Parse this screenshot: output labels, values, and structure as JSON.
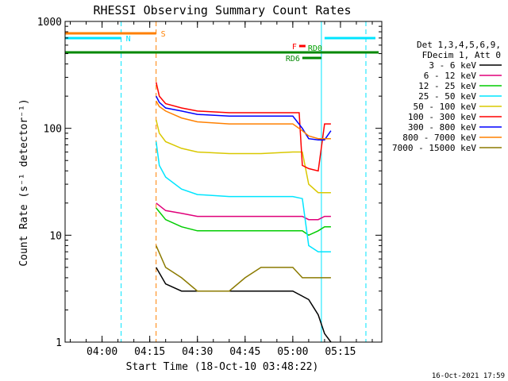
{
  "chart_data": {
    "type": "line",
    "title": "RHESSI Observing Summary Count Rates",
    "xlabel": "Start Time (18-Oct-10 03:48:22)",
    "ylabel": "Count Rate (s⁻¹ detector⁻¹)",
    "yscale": "log",
    "ylim": [
      1,
      1000
    ],
    "xlim": [
      "03:48:22",
      "05:28:00"
    ],
    "y_ticks": [
      "1",
      "10",
      "100",
      "1000"
    ],
    "x_ticks": [
      "04:00",
      "04:15",
      "04:30",
      "04:45",
      "05:00",
      "05:15"
    ],
    "footer_date": "16-Oct-2021 17:59",
    "legend_header": [
      "Det 1,3,4,5,6,9,",
      "FDecim 1, Att 0"
    ],
    "series": [
      {
        "name": "3 - 6 keV",
        "color": "#000000",
        "x": [
          "04:17",
          "04:20",
          "04:25",
          "04:30",
          "04:40",
          "04:50",
          "05:00",
          "05:05",
          "05:08",
          "05:10",
          "05:12"
        ],
        "values": [
          5,
          3.5,
          3,
          3,
          3,
          3,
          3,
          2.5,
          1.8,
          1.2,
          1
        ]
      },
      {
        "name": "6 - 12 keV",
        "color": "#e0007a",
        "x": [
          "04:17",
          "04:20",
          "04:25",
          "04:30",
          "04:40",
          "04:50",
          "05:00",
          "05:03",
          "05:05",
          "05:08",
          "05:10",
          "05:12"
        ],
        "values": [
          20,
          17,
          16,
          15,
          15,
          15,
          15,
          15,
          14,
          14,
          15,
          15
        ]
      },
      {
        "name": "12 - 25 keV",
        "color": "#00cc00",
        "x": [
          "04:17",
          "04:20",
          "04:25",
          "04:30",
          "04:40",
          "04:50",
          "05:00",
          "05:03",
          "05:05",
          "05:08",
          "05:10",
          "05:12"
        ],
        "values": [
          18,
          14,
          12,
          11,
          11,
          11,
          11,
          11,
          10,
          11,
          12,
          12
        ]
      },
      {
        "name": "25 - 50 keV",
        "color": "#00e5ff",
        "x": [
          "04:17",
          "04:18",
          "04:20",
          "04:25",
          "04:30",
          "04:40",
          "04:50",
          "05:00",
          "05:03",
          "05:05",
          "05:08",
          "05:10",
          "05:12"
        ],
        "values": [
          75,
          45,
          35,
          27,
          24,
          23,
          23,
          23,
          22,
          8,
          7,
          7,
          7
        ]
      },
      {
        "name": "50 - 100 keV",
        "color": "#d9c800",
        "x": [
          "04:17",
          "04:18",
          "04:20",
          "04:25",
          "04:30",
          "04:40",
          "04:50",
          "05:00",
          "05:03",
          "05:05",
          "05:08",
          "05:10",
          "05:12"
        ],
        "values": [
          120,
          90,
          75,
          65,
          60,
          58,
          58,
          60,
          60,
          30,
          25,
          25,
          25
        ]
      },
      {
        "name": "100 - 300 keV",
        "color": "#ff0000",
        "x": [
          "04:17",
          "04:18",
          "04:20",
          "04:25",
          "04:30",
          "04:40",
          "04:50",
          "05:00",
          "05:02",
          "05:03",
          "05:05",
          "05:08",
          "05:10",
          "05:12"
        ],
        "values": [
          270,
          200,
          170,
          155,
          145,
          140,
          140,
          140,
          140,
          45,
          42,
          40,
          110,
          110
        ]
      },
      {
        "name": "300 - 800 keV",
        "color": "#0000ff",
        "x": [
          "04:17",
          "04:18",
          "04:20",
          "04:25",
          "04:30",
          "04:40",
          "04:50",
          "05:00",
          "05:03",
          "05:05",
          "05:08",
          "05:10",
          "05:12"
        ],
        "values": [
          200,
          175,
          155,
          145,
          135,
          130,
          130,
          130,
          100,
          80,
          78,
          78,
          95
        ]
      },
      {
        "name": "800 - 7000 keV",
        "color": "#ff8000",
        "x": [
          "04:17",
          "04:18",
          "04:20",
          "04:25",
          "04:30",
          "04:40",
          "04:50",
          "05:00",
          "05:03",
          "05:05",
          "05:08",
          "05:10",
          "05:12"
        ],
        "values": [
          180,
          160,
          145,
          125,
          115,
          110,
          110,
          110,
          95,
          85,
          80,
          80,
          80
        ]
      },
      {
        "name": "7000 - 15000 keV",
        "color": "#8b7a00",
        "x": [
          "04:17",
          "04:20",
          "04:25",
          "04:30",
          "04:40",
          "04:45",
          "04:50",
          "05:00",
          "05:03",
          "05:05",
          "05:08",
          "05:10",
          "05:12"
        ],
        "values": [
          8,
          5,
          4,
          3,
          3,
          4,
          5,
          5,
          4,
          4,
          4,
          4,
          4
        ]
      }
    ],
    "annotations": [
      {
        "label": "S",
        "color": "#ff8000",
        "x_start": "03:48:22",
        "x_end": "04:17"
      },
      {
        "label": "N",
        "color": "#00e5ff",
        "x_start": "03:48:22",
        "x_end": "04:06"
      },
      {
        "label": "F",
        "color": "#ff0000",
        "x_start": "05:02",
        "x_end": "05:04"
      },
      {
        "label": "RD0",
        "color": "#00a000",
        "x_start": "05:04",
        "x_end": "05:10"
      },
      {
        "label": "RD6",
        "color": "#008800",
        "x_start": "05:03",
        "x_end": "05:09"
      }
    ],
    "vertical_markers": [
      {
        "x": "03:48:22",
        "color": "#00e5ff",
        "style": "solid"
      },
      {
        "x": "04:06",
        "color": "#00e5ff",
        "style": "dashed"
      },
      {
        "x": "04:17",
        "color": "#ff8000",
        "style": "dashed"
      },
      {
        "x": "05:09",
        "color": "#00e5ff",
        "style": "solid"
      },
      {
        "x": "05:23",
        "color": "#00e5ff",
        "style": "dashed"
      }
    ]
  }
}
